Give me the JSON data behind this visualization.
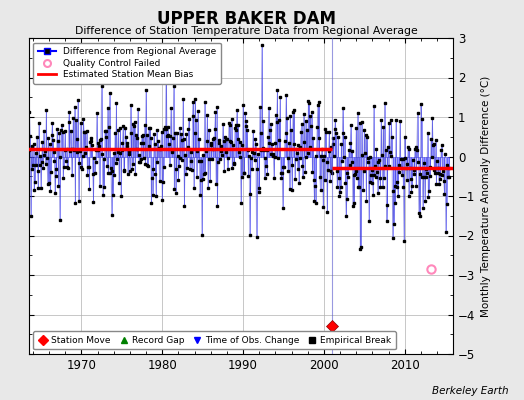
{
  "title": "UPPER BAKER DAM",
  "subtitle": "Difference of Station Temperature Data from Regional Average",
  "ylabel": "Monthly Temperature Anomaly Difference (°C)",
  "credit": "Berkeley Earth",
  "xlim": [
    1963.5,
    2016.0
  ],
  "ylim": [
    -5,
    3
  ],
  "yticks": [
    -5,
    -4,
    -3,
    -2,
    -1,
    0,
    1,
    2,
    3
  ],
  "xticks": [
    1970,
    1980,
    1990,
    2000,
    2010
  ],
  "background_color": "#e8e8e8",
  "plot_bg_color": "#ffffff",
  "grid_color": "#b0b0b0",
  "bias_line1_x": [
    1963,
    2001
  ],
  "bias_line1_y": 0.18,
  "bias_line2_x": [
    2001,
    2016
  ],
  "bias_line2_y": -0.28,
  "station_move_x": 2001.0,
  "station_move_y": -4.3,
  "vertical_line_x": 2001.0,
  "qc_fail_x": 2013.2,
  "qc_fail_y": -2.85,
  "seed": 42,
  "period1_start": 1963.083,
  "period1_end": 2001.0,
  "period2_start": 2001.083,
  "period2_end": 2015.5,
  "bias1": 0.18,
  "bias2": -0.28,
  "std1": 0.6,
  "std2": 0.55
}
